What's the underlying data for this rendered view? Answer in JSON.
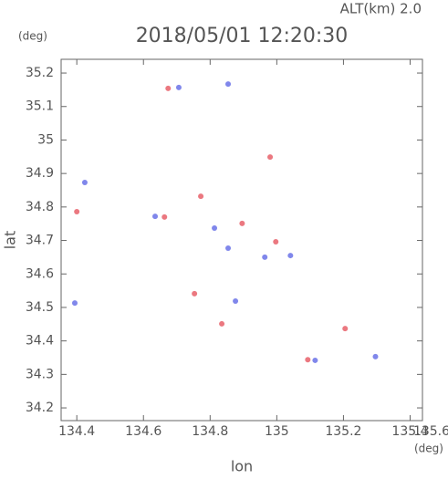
{
  "chart_data": {
    "type": "scatter",
    "title": "2018/05/01 12:20:30",
    "subtitle": "ALT(km) 2.0",
    "y_unit": "(deg)",
    "x_unit": "(deg)",
    "x_label": "lon",
    "y_label": "lat",
    "xlim": [
      134.353,
      135.437
    ],
    "ylim": [
      34.162,
      35.241
    ],
    "xticks": [
      134.4,
      134.6,
      134.8,
      135.0,
      135.2,
      135.4,
      135.6
    ],
    "yticks": [
      34.2,
      34.3,
      34.4,
      34.5,
      34.6,
      34.7,
      34.8,
      34.9,
      35.0,
      35.1,
      35.2
    ],
    "grid": false,
    "series": [
      {
        "color": "#e8606a",
        "x": [
          134.674,
          134.98,
          134.4,
          134.663,
          134.772,
          134.896,
          134.997,
          134.835,
          135.093,
          135.205,
          134.753
        ],
        "values": [
          35.154,
          34.949,
          34.786,
          34.77,
          34.832,
          34.751,
          34.696,
          34.451,
          34.344,
          34.437,
          34.541
        ]
      },
      {
        "color": "#6a72e8",
        "x": [
          134.394,
          135.115,
          134.424,
          134.635,
          134.813,
          134.876,
          134.854,
          134.964,
          135.296,
          134.854,
          135.041,
          134.706
        ],
        "values": [
          34.513,
          34.342,
          34.873,
          34.772,
          34.737,
          34.519,
          34.677,
          34.65,
          34.353,
          35.167,
          34.655,
          35.157
        ]
      }
    ]
  }
}
